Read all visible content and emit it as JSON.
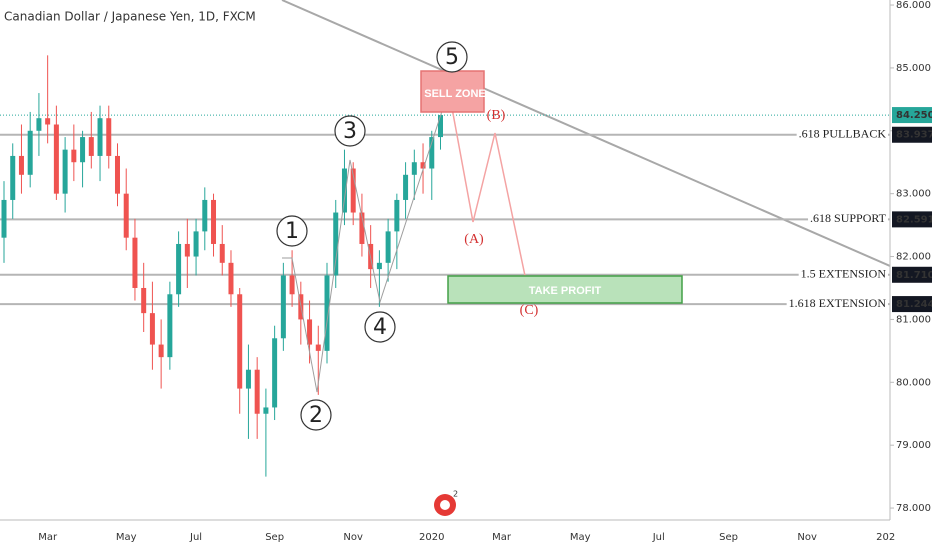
{
  "chart_data": {
    "type": "candlestick",
    "title": "Canadian Dollar / Japanese Yen, 1D, FXCM",
    "categories": [
      null,
      null,
      null,
      null,
      null,
      "Mar",
      null,
      null,
      null,
      null,
      null,
      null,
      null,
      null,
      "May",
      null,
      null,
      null,
      null,
      null,
      null,
      null,
      "Jul",
      null,
      null,
      null,
      null,
      null,
      null,
      null,
      null,
      "Sep",
      null,
      null,
      null,
      null,
      null,
      null,
      null,
      null,
      "Nov",
      null,
      null,
      null,
      null,
      null,
      null,
      null,
      null,
      "2020",
      null,
      null,
      null,
      null,
      null,
      null,
      null,
      "Mar",
      null,
      null,
      null,
      null,
      null,
      null,
      null,
      null,
      "May",
      null,
      null,
      null,
      null,
      null,
      null,
      null,
      null,
      "Jul",
      null,
      null,
      null,
      null,
      null,
      null,
      null,
      "Sep",
      null,
      null,
      null,
      null,
      null,
      null,
      null,
      null,
      "Nov",
      null,
      null,
      null,
      null,
      null,
      null,
      null,
      null,
      "202"
    ],
    "ohlc": [
      [
        82.3,
        83.2,
        81.9,
        82.9
      ],
      [
        82.9,
        83.8,
        82.6,
        83.6
      ],
      [
        83.6,
        84.1,
        83.0,
        83.3
      ],
      [
        83.3,
        84.3,
        83.1,
        84.0
      ],
      [
        84.0,
        84.6,
        83.6,
        84.2
      ],
      [
        84.2,
        85.2,
        83.8,
        84.1
      ],
      [
        84.1,
        84.4,
        82.9,
        83.0
      ],
      [
        83.0,
        83.9,
        82.7,
        83.7
      ],
      [
        83.7,
        84.1,
        83.2,
        83.5
      ],
      [
        83.5,
        84.0,
        83.1,
        83.9
      ],
      [
        83.9,
        84.3,
        83.4,
        83.6
      ],
      [
        83.6,
        84.4,
        83.2,
        84.2
      ],
      [
        84.2,
        84.4,
        83.4,
        83.6
      ],
      [
        83.6,
        83.8,
        82.8,
        83.0
      ],
      [
        83.0,
        83.4,
        82.1,
        82.3
      ],
      [
        82.3,
        82.6,
        81.3,
        81.5
      ],
      [
        81.5,
        81.9,
        80.8,
        81.1
      ],
      [
        81.1,
        81.6,
        80.2,
        80.6
      ],
      [
        80.6,
        81.0,
        79.9,
        80.4
      ],
      [
        80.4,
        81.6,
        80.2,
        81.4
      ],
      [
        81.4,
        82.4,
        81.2,
        82.2
      ],
      [
        82.2,
        82.6,
        81.5,
        82.0
      ],
      [
        82.0,
        82.6,
        81.7,
        82.4
      ],
      [
        82.4,
        83.1,
        82.1,
        82.9
      ],
      [
        82.9,
        83.0,
        82.0,
        82.2
      ],
      [
        82.2,
        82.5,
        81.7,
        81.9
      ],
      [
        81.9,
        82.1,
        81.2,
        81.4
      ],
      [
        81.4,
        81.5,
        79.5,
        79.9
      ],
      [
        79.9,
        80.6,
        79.1,
        80.2
      ],
      [
        80.2,
        80.4,
        79.1,
        79.5
      ],
      [
        79.5,
        79.9,
        78.5,
        79.6
      ],
      [
        79.6,
        80.9,
        79.4,
        80.7
      ],
      [
        80.7,
        81.9,
        80.5,
        81.7
      ],
      [
        81.7,
        82.1,
        81.2,
        81.4
      ],
      [
        81.4,
        81.6,
        80.6,
        81.0
      ],
      [
        81.0,
        81.3,
        80.3,
        80.6
      ],
      [
        80.6,
        80.9,
        79.8,
        80.5
      ],
      [
        80.5,
        81.9,
        80.3,
        81.7
      ],
      [
        81.7,
        82.9,
        81.5,
        82.7
      ],
      [
        82.7,
        83.7,
        82.5,
        83.4
      ],
      [
        83.4,
        83.5,
        82.5,
        82.7
      ],
      [
        82.7,
        83.0,
        82.0,
        82.2
      ],
      [
        82.2,
        82.5,
        81.5,
        81.8
      ],
      [
        81.8,
        82.1,
        81.2,
        81.9
      ],
      [
        81.9,
        82.6,
        81.6,
        82.4
      ],
      [
        82.4,
        83.0,
        81.8,
        82.9
      ],
      [
        82.9,
        83.5,
        82.6,
        83.3
      ],
      [
        83.3,
        83.7,
        82.9,
        83.5
      ],
      [
        83.5,
        83.8,
        83.0,
        83.4
      ],
      [
        83.4,
        84.0,
        82.9,
        83.9
      ],
      [
        83.9,
        84.25,
        83.7,
        84.25
      ],
      null,
      null,
      null,
      null,
      null,
      null,
      null,
      null,
      null,
      null,
      null,
      null,
      null,
      null,
      null,
      null,
      null,
      null,
      null,
      null,
      null,
      null,
      null,
      null,
      null,
      null,
      null,
      null,
      null,
      null,
      null,
      null,
      null,
      null,
      null,
      null,
      null,
      null,
      null,
      null,
      null,
      null,
      null,
      null,
      null,
      null,
      null,
      null,
      null,
      null,
      null
    ],
    "up_color": "#26a69a",
    "down_color": "#ef5350",
    "ylim": [
      77.81,
      86.08
    ],
    "yticks": [
      {
        "value": 86,
        "label": "86.000"
      },
      {
        "value": 85,
        "label": "85.000"
      },
      {
        "value": 84,
        "label": "84.000"
      },
      {
        "value": 83,
        "label": "83.000"
      },
      {
        "value": 82,
        "label": "82.000"
      },
      {
        "value": 81,
        "label": "81.000"
      },
      {
        "value": 80,
        "label": "80.000"
      },
      {
        "value": 79,
        "label": "79.000"
      },
      {
        "value": 78,
        "label": "78.000"
      }
    ],
    "levels": {
      "names": [
        null,
        ".618 PULLBACK",
        ".618 SUPPORT",
        "1.5 EXTENSION",
        "1.618 EXTENSION"
      ],
      "values": [
        84.25,
        83.937,
        82.591,
        81.71,
        81.244
      ],
      "value_labels": [
        "84.250",
        "83.937",
        "82.591",
        "81.710",
        "81.244"
      ]
    },
    "wave_labels": [
      "1",
      "2",
      "3",
      "4",
      "5"
    ],
    "correction_labels": [
      "(A)",
      "(B)",
      "(C)"
    ],
    "sell_zone": "SELL ZONE",
    "take_profit": "TAKE PROFIT"
  }
}
